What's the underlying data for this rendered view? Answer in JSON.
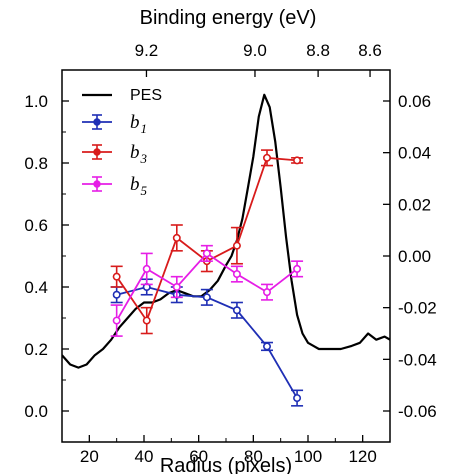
{
  "chart_data": {
    "type": "line",
    "top_axis": {
      "label": "Binding energy (eV)",
      "tick_labels": [
        "9.2",
        "9.0",
        "8.8",
        "8.6"
      ],
      "tick_radius": [
        40.9,
        80.6,
        103.7,
        122.7
      ]
    },
    "bottom_axis": {
      "label": "Radius (pixels)",
      "xlim": [
        10,
        130
      ],
      "ticks": [
        20,
        40,
        60,
        80,
        100,
        120
      ]
    },
    "left_axis": {
      "label": "",
      "ylim": [
        -0.1,
        1.1
      ],
      "ticks": [
        0.0,
        0.2,
        0.4,
        0.6,
        0.8,
        1.0
      ],
      "tick_labels": [
        "0.0",
        "0.2",
        "0.4",
        "0.6",
        "0.8",
        "1.0"
      ]
    },
    "right_axis": {
      "label": "",
      "ylim": [
        -0.072,
        0.072
      ],
      "ticks": [
        -0.06,
        -0.04,
        -0.02,
        0.0,
        0.02,
        0.04,
        0.06
      ],
      "tick_labels": [
        "-0.06",
        "-0.04",
        "-0.02",
        "0.00",
        "0.02",
        "0.04",
        "0.06"
      ]
    },
    "legend": {
      "position": "top-left",
      "entries": [
        {
          "label": "PES",
          "style": "text"
        },
        {
          "label": "b",
          "sub": "1",
          "style": "italic"
        },
        {
          "label": "b",
          "sub": "3",
          "style": "italic"
        },
        {
          "label": "b",
          "sub": "5",
          "style": "italic"
        }
      ]
    },
    "pes": {
      "name": "PES",
      "color": "#000000",
      "x": [
        10,
        13,
        16,
        19,
        22,
        25,
        28,
        31,
        34,
        37,
        40,
        43,
        46,
        49,
        52,
        55,
        58,
        61,
        64,
        67,
        70,
        72,
        74,
        76,
        78,
        80,
        82,
        84,
        86,
        88,
        90,
        92,
        94,
        96,
        98,
        100,
        102,
        104,
        108,
        112,
        116,
        119,
        122,
        125,
        128,
        130
      ],
      "y": [
        0.18,
        0.15,
        0.14,
        0.15,
        0.18,
        0.2,
        0.23,
        0.27,
        0.3,
        0.33,
        0.35,
        0.35,
        0.36,
        0.38,
        0.39,
        0.38,
        0.37,
        0.37,
        0.39,
        0.42,
        0.47,
        0.5,
        0.55,
        0.62,
        0.72,
        0.82,
        0.95,
        1.02,
        0.98,
        0.87,
        0.72,
        0.56,
        0.42,
        0.31,
        0.25,
        0.22,
        0.21,
        0.2,
        0.2,
        0.2,
        0.21,
        0.22,
        0.25,
        0.23,
        0.24,
        0.23
      ]
    },
    "series": [
      {
        "name": "b1",
        "color": "#1f2fb5",
        "x": [
          30,
          41,
          52,
          63,
          74,
          85,
          96
        ],
        "y": [
          -0.015,
          -0.012,
          -0.015,
          -0.016,
          -0.021,
          -0.035,
          -0.055
        ],
        "err": [
          0.003,
          0.003,
          0.003,
          0.003,
          0.003,
          0.0015,
          0.003
        ]
      },
      {
        "name": "b3",
        "color": "#d81b1b",
        "x": [
          30,
          41,
          52,
          63,
          74,
          85,
          96
        ],
        "y": [
          -0.008,
          -0.025,
          0.007,
          -0.002,
          0.004,
          0.038,
          0.037
        ],
        "err": [
          0.004,
          0.005,
          0.005,
          0.004,
          0.007,
          0.003,
          0.001
        ]
      },
      {
        "name": "b5",
        "color": "#e61ee6",
        "x": [
          30,
          41,
          52,
          63,
          74,
          85,
          96
        ],
        "y": [
          -0.025,
          -0.005,
          -0.012,
          0.001,
          -0.007,
          -0.014,
          -0.005
        ],
        "err": [
          0.006,
          0.006,
          0.004,
          0.003,
          0.003,
          0.003,
          0.003
        ]
      }
    ]
  }
}
